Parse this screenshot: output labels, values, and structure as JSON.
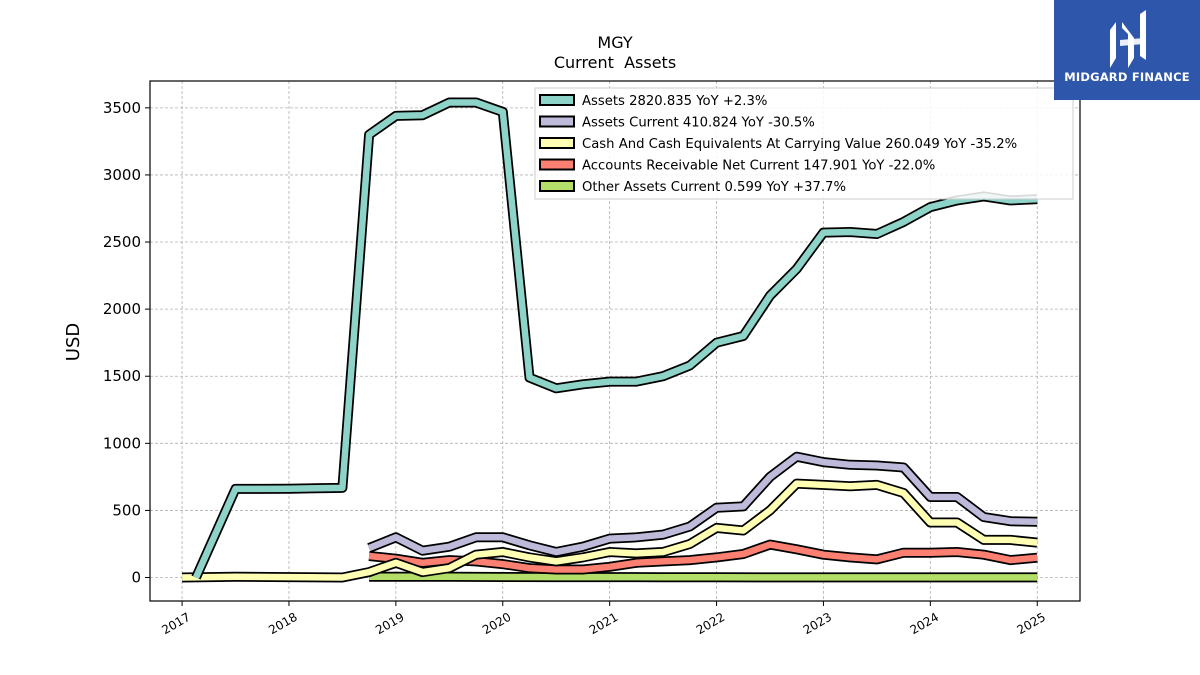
{
  "logo": {
    "text": "MIDGARD FINANCE",
    "background": "#2e56ab"
  },
  "chart_data": {
    "type": "line",
    "title": "MGY",
    "subtitle": "Current  Assets",
    "xlabel": "",
    "ylabel": "USD",
    "ylim": [
      -175,
      3700
    ],
    "xlim": [
      2016.7,
      2025.4
    ],
    "yticks": [
      0,
      500,
      1000,
      1500,
      2000,
      2500,
      3000,
      3500
    ],
    "xtick_labels": [
      "2017",
      "2018",
      "2019",
      "2020",
      "2021",
      "2022",
      "2023",
      "2024",
      "2025"
    ],
    "grid": true,
    "legend_position": "top-right",
    "series": [
      {
        "name": "Assets",
        "legend": "Assets  2820.835 YoY +2.3%",
        "color": "#8dd3c7",
        "x": [
          2017.13,
          2017.5,
          2017.75,
          2018.0,
          2018.25,
          2018.5,
          2018.75,
          2019.0,
          2019.25,
          2019.5,
          2019.75,
          2020.0,
          2020.25,
          2020.5,
          2020.75,
          2021.0,
          2021.25,
          2021.5,
          2021.75,
          2022.0,
          2022.25,
          2022.5,
          2022.75,
          2023.0,
          2023.25,
          2023.5,
          2023.75,
          2024.0,
          2024.25,
          2024.5,
          2024.75,
          2025.0
        ],
        "y": [
          0,
          660,
          660,
          662,
          665,
          668,
          3300,
          3440,
          3445,
          3540,
          3540,
          3470,
          1490,
          1410,
          1440,
          1460,
          1460,
          1500,
          1580,
          1750,
          1800,
          2100,
          2300,
          2570,
          2575,
          2560,
          2650,
          2760,
          2810,
          2840,
          2810,
          2820
        ]
      },
      {
        "name": "Assets Current",
        "legend": "Assets Current  410.824 YoY -30.5%",
        "color": "#bebada",
        "x": [
          2018.75,
          2019.0,
          2019.25,
          2019.5,
          2019.75,
          2020.0,
          2020.25,
          2020.5,
          2020.75,
          2021.0,
          2021.25,
          2021.5,
          2021.75,
          2022.0,
          2022.25,
          2022.5,
          2022.75,
          2023.0,
          2023.25,
          2023.5,
          2023.75,
          2024.0,
          2024.25,
          2024.5,
          2024.75,
          2025.0
        ],
        "y": [
          220,
          300,
          200,
          230,
          300,
          300,
          240,
          190,
          230,
          290,
          300,
          320,
          380,
          520,
          530,
          750,
          900,
          860,
          840,
          835,
          820,
          600,
          600,
          450,
          420,
          415
        ]
      },
      {
        "name": "Cash And Cash Equivalents At Carrying Value",
        "legend": "Cash And Cash Equivalents At Carrying Value  260.049 YoY -35.2%",
        "color": "#ffffb3",
        "x": [
          2017.0,
          2017.5,
          2018.0,
          2018.5,
          2018.75,
          2019.0,
          2019.25,
          2019.5,
          2019.75,
          2020.0,
          2020.25,
          2020.5,
          2020.75,
          2021.0,
          2021.25,
          2021.5,
          2021.75,
          2022.0,
          2022.25,
          2022.5,
          2022.75,
          2023.0,
          2023.25,
          2023.5,
          2023.75,
          2024.0,
          2024.25,
          2024.5,
          2024.75,
          2025.0
        ],
        "y": [
          0,
          5,
          3,
          0,
          40,
          110,
          40,
          70,
          170,
          190,
          150,
          120,
          150,
          190,
          180,
          190,
          250,
          370,
          350,
          500,
          700,
          690,
          680,
          690,
          630,
          410,
          410,
          280,
          280,
          260
        ]
      },
      {
        "name": "Accounts Receivable Net Current",
        "legend": "Accounts Receivable Net Current  147.901 YoY -22.0%",
        "color": "#fb8072",
        "x": [
          2018.75,
          2019.0,
          2019.25,
          2019.5,
          2019.75,
          2020.0,
          2020.25,
          2020.5,
          2020.75,
          2021.0,
          2021.25,
          2021.5,
          2021.75,
          2022.0,
          2022.25,
          2022.5,
          2022.75,
          2023.0,
          2023.25,
          2023.5,
          2023.75,
          2024.0,
          2024.25,
          2024.5,
          2024.75,
          2025.0
        ],
        "y": [
          160,
          140,
          110,
          130,
          120,
          100,
          70,
          60,
          60,
          80,
          110,
          120,
          130,
          150,
          175,
          245,
          210,
          170,
          150,
          135,
          185,
          185,
          190,
          170,
          130,
          148
        ]
      },
      {
        "name": "Other Assets Current",
        "legend": "Other Assets Current  0.599 YoY +37.7%",
        "color": "#b3de69",
        "x": [
          2018.75,
          2019.0,
          2019.5,
          2020.0,
          2020.5,
          2021.0,
          2021.5,
          2022.0,
          2022.5,
          2023.0,
          2023.5,
          2024.0,
          2024.5,
          2025.0
        ],
        "y": [
          5,
          6,
          5,
          4,
          3,
          3,
          2,
          2,
          1,
          1,
          1,
          1,
          0.6,
          0.6
        ]
      }
    ]
  }
}
